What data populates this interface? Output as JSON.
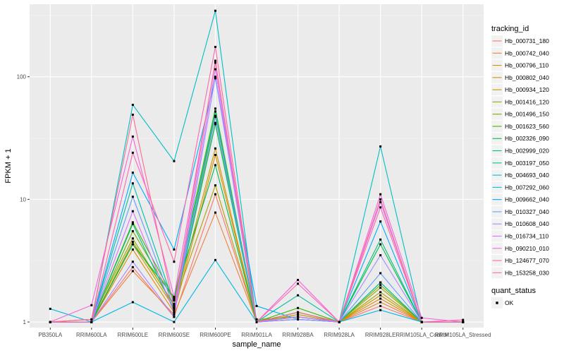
{
  "chart_data": {
    "type": "line",
    "xlabel": "sample_name",
    "ylabel": "FPKM + 1",
    "y_scale": "log10",
    "ylim": [
      0.9,
      390
    ],
    "y_ticks": [
      {
        "value": 1,
        "label": "1"
      },
      {
        "value": 10,
        "label": "10"
      },
      {
        "value": 100,
        "label": "100"
      }
    ],
    "grid": true,
    "background": "#ebebeb",
    "legend_position": "right",
    "categories": [
      "PB350LA",
      "RRIM600LA",
      "RRIM600LE",
      "RRIM600SE",
      "RRIM600PE",
      "RRIM901LA",
      "RRIM928BA",
      "RRIM928LA",
      "RRIM928LE",
      "RRIM105LA_Control",
      "RRIM105LA_Stressed"
    ],
    "legend": {
      "title": "tracking_id",
      "quant_status_title": "quant_status",
      "quant_status_value": "OK"
    },
    "series": [
      {
        "name": "Hb_000731_180",
        "color": "#F8766D",
        "values": [
          1.0,
          1.0,
          2.8,
          1.1,
          11.0,
          1.0,
          1.15,
          1.0,
          1.35,
          1.0,
          1.0
        ]
      },
      {
        "name": "Hb_000742_040",
        "color": "#EC823C",
        "values": [
          1.0,
          1.0,
          2.6,
          1.15,
          7.8,
          1.0,
          1.1,
          1.0,
          1.45,
          1.0,
          1.0
        ]
      },
      {
        "name": "Hb_000796_110",
        "color": "#DC8D00",
        "values": [
          1.0,
          1.0,
          3.9,
          1.2,
          23.0,
          1.0,
          1.2,
          1.0,
          1.55,
          1.0,
          1.0
        ]
      },
      {
        "name": "Hb_000802_040",
        "color": "#C99800",
        "values": [
          1.0,
          1.0,
          4.3,
          1.3,
          26.0,
          1.0,
          1.1,
          1.0,
          1.65,
          1.0,
          1.0
        ]
      },
      {
        "name": "Hb_000934_120",
        "color": "#B3A000",
        "values": [
          1.0,
          1.0,
          4.5,
          1.4,
          13.0,
          1.0,
          1.15,
          1.0,
          1.75,
          1.0,
          1.0
        ]
      },
      {
        "name": "Hb_001416_120",
        "color": "#97A900",
        "values": [
          1.0,
          1.05,
          4.8,
          1.35,
          42.0,
          1.05,
          1.1,
          1.0,
          1.9,
          1.0,
          1.0
        ]
      },
      {
        "name": "Hb_001496_150",
        "color": "#72B000",
        "values": [
          1.0,
          1.0,
          5.5,
          1.5,
          48.0,
          1.0,
          1.2,
          1.0,
          2.0,
          1.0,
          1.0
        ]
      },
      {
        "name": "Hb_001623_560",
        "color": "#39B600",
        "values": [
          1.0,
          1.0,
          6.5,
          1.55,
          55.0,
          1.0,
          1.3,
          1.0,
          2.1,
          1.0,
          1.0
        ]
      },
      {
        "name": "Hb_002326_090",
        "color": "#00BB4E",
        "values": [
          1.0,
          1.0,
          4.3,
          1.6,
          19.0,
          1.0,
          1.1,
          1.0,
          4.3,
          1.0,
          1.0
        ]
      },
      {
        "name": "Hb_002999_020",
        "color": "#00BF7D",
        "values": [
          1.0,
          1.0,
          6.3,
          1.25,
          41.0,
          1.0,
          1.2,
          1.0,
          4.7,
          1.0,
          1.0
        ]
      },
      {
        "name": "Hb_003197_050",
        "color": "#00C1A3",
        "values": [
          1.0,
          1.0,
          13.5,
          1.4,
          52.0,
          1.0,
          1.65,
          1.0,
          2.1,
          1.0,
          1.0
        ]
      },
      {
        "name": "Hb_004693_040",
        "color": "#00BFC4",
        "values": [
          1.0,
          1.0,
          59.0,
          20.5,
          345.0,
          1.0,
          1.05,
          1.0,
          27.0,
          1.0,
          1.0
        ]
      },
      {
        "name": "Hb_007292_060",
        "color": "#00B8E5",
        "values": [
          1.28,
          1.0,
          1.45,
          1.0,
          3.2,
          1.0,
          1.05,
          1.0,
          1.25,
          1.0,
          1.0
        ]
      },
      {
        "name": "Hb_009662_040",
        "color": "#00ABFD",
        "values": [
          1.0,
          1.0,
          16.5,
          3.9,
          97.0,
          1.35,
          1.05,
          1.0,
          6.6,
          1.0,
          1.0
        ]
      },
      {
        "name": "Hb_010327_040",
        "color": "#619CFF",
        "values": [
          1.0,
          1.0,
          10.5,
          1.3,
          47.0,
          1.0,
          1.1,
          1.0,
          2.5,
          1.0,
          1.0
        ]
      },
      {
        "name": "Hb_010608_040",
        "color": "#A58AFF",
        "values": [
          1.0,
          1.0,
          3.1,
          1.1,
          100.0,
          1.0,
          1.05,
          1.0,
          3.5,
          1.0,
          1.0
        ]
      },
      {
        "name": "Hb_016734_110",
        "color": "#DB72FB",
        "values": [
          1.0,
          1.0,
          8.0,
          1.2,
          115.0,
          1.0,
          1.1,
          1.0,
          9.5,
          1.0,
          1.0
        ]
      },
      {
        "name": "Hb_090210_010",
        "color": "#F763E0",
        "values": [
          1.0,
          1.37,
          32.5,
          1.6,
          130.0,
          1.0,
          2.2,
          1.0,
          11.0,
          1.08,
          1.0
        ]
      },
      {
        "name": "Hb_124677_070",
        "color": "#FF65AF",
        "values": [
          1.0,
          1.0,
          24.0,
          3.1,
          175.0,
          1.0,
          2.05,
          1.0,
          8.6,
          1.0,
          1.04
        ]
      },
      {
        "name": "Hb_153258_030",
        "color": "#FF6C90",
        "values": [
          1.0,
          1.05,
          49.0,
          1.3,
          135.0,
          1.0,
          1.2,
          1.0,
          10.0,
          1.0,
          1.0
        ]
      }
    ]
  }
}
